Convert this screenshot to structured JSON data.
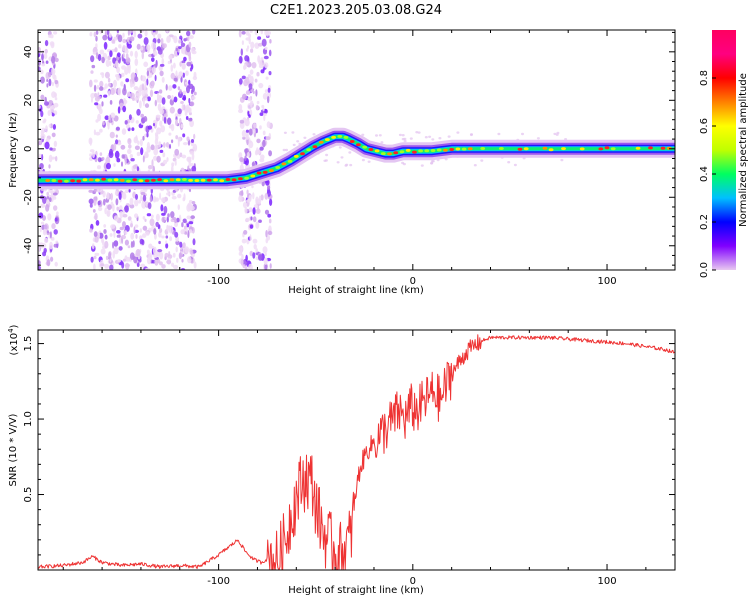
{
  "title": "C2E1.2023.205.03.08.G24",
  "chart_data": [
    {
      "type": "heatmap",
      "xlabel": "Height of straight line (km)",
      "ylabel": "Frequency (Hz)",
      "xlim": [
        -193,
        135
      ],
      "ylim": [
        -50,
        49
      ],
      "xticks": [
        -100,
        0,
        100
      ],
      "yticks": [
        -40,
        -20,
        0,
        20,
        40
      ],
      "ridge": {
        "x": [
          -193,
          -120,
          -96,
          -86,
          -78,
          -70,
          -63,
          -57,
          -51,
          -46,
          -40,
          -36,
          -33,
          -28,
          -24,
          -19,
          -14,
          -10,
          -5,
          0,
          5,
          10,
          20,
          40,
          80,
          135
        ],
        "y": [
          -13,
          -13,
          -13,
          -12,
          -10,
          -8,
          -5,
          -2,
          1,
          3,
          5,
          5,
          4,
          2,
          0,
          -1,
          -2,
          -2,
          -1,
          -1,
          -1,
          -1,
          0,
          0,
          0,
          0
        ]
      },
      "noise_bands_x": [
        [
          -193,
          -183
        ],
        [
          -166,
          -112
        ],
        [
          -89,
          -73
        ]
      ],
      "colorbar": {
        "label": "Normalized spectral amplitude",
        "range": [
          0.0,
          1.0
        ],
        "ticks": [
          "0.0",
          "0.2",
          "0.4",
          "0.6",
          "0.8"
        ],
        "colors": [
          "#e8c8f0",
          "#8000ff",
          "#0000ff",
          "#00c0ff",
          "#00ff60",
          "#c0ff00",
          "#ffff00",
          "#ff8000",
          "#ff0000",
          "#ff0080",
          "#ff0060"
        ]
      }
    },
    {
      "type": "line",
      "xlabel": "Height of straight line (km)",
      "ylabel": "SNR (10 * V/V)",
      "multiplier": "(x10",
      "multiplier_exp": "4",
      "multiplier_close": ")",
      "xlim": [
        -193,
        135
      ],
      "ylim": [
        0,
        1.59
      ],
      "xticks": [
        -100,
        0,
        100
      ],
      "yticks": [
        "0.5",
        "1.0",
        "1.5"
      ],
      "line_color": "#ee3333",
      "series": [
        {
          "x": [
            -193,
            -180,
            -170,
            -165,
            -160,
            -150,
            -140,
            -130,
            -120,
            -110,
            -105,
            -100,
            -95,
            -90,
            -86,
            -82,
            -78,
            -74,
            -70,
            -66,
            -62,
            -58,
            -55,
            -52,
            -49,
            -46,
            -43,
            -40,
            -36,
            -32,
            -29,
            -27,
            -24,
            -20,
            -16,
            -13,
            -10,
            -7,
            -4,
            -1,
            2,
            5,
            8,
            11,
            14,
            17,
            20,
            24,
            28,
            32,
            36,
            40,
            50,
            60,
            70,
            80,
            90,
            100,
            110,
            120,
            130,
            135
          ],
          "y": [
            0.02,
            0.03,
            0.05,
            0.09,
            0.05,
            0.03,
            0.04,
            0.02,
            0.03,
            0.02,
            0.06,
            0.1,
            0.15,
            0.2,
            0.12,
            0.07,
            0.05,
            0.08,
            0.05,
            0.18,
            0.4,
            0.55,
            0.62,
            0.58,
            0.38,
            0.25,
            0.18,
            0.12,
            0.1,
            0.22,
            0.55,
            0.68,
            0.78,
            0.85,
            0.9,
            0.95,
            1.0,
            1.05,
            1.0,
            1.08,
            1.05,
            1.1,
            1.15,
            1.18,
            1.12,
            1.22,
            1.3,
            1.38,
            1.45,
            1.49,
            1.52,
            1.54,
            1.54,
            1.54,
            1.54,
            1.53,
            1.52,
            1.51,
            1.5,
            1.48,
            1.46,
            1.44
          ]
        }
      ]
    }
  ]
}
